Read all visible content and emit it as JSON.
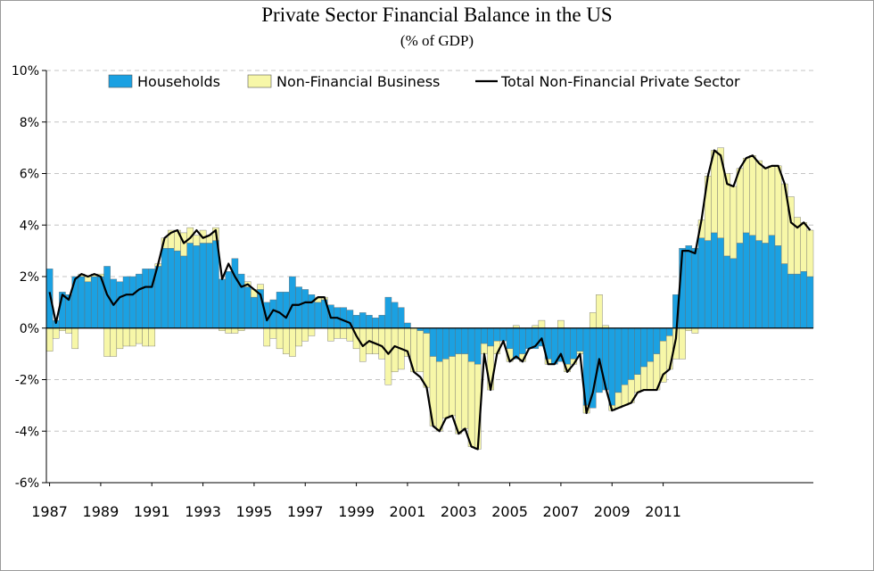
{
  "chart_data": {
    "type": "bar",
    "title": "Private Sector Financial Balance in the US",
    "subtitle": "(% of GDP)",
    "xlabel": "",
    "ylabel": "",
    "ylim": [
      -6,
      10
    ],
    "yticks": [
      "-6%",
      "-4%",
      "-2%",
      "0%",
      "2%",
      "4%",
      "6%",
      "8%",
      "10%"
    ],
    "xticks": [
      "1987",
      "1989",
      "1991",
      "1993",
      "1995",
      "1997",
      "1999",
      "2001",
      "2003",
      "2005",
      "2007",
      "2009",
      "2011"
    ],
    "x_start_year": 1987,
    "periods_per_year": 4,
    "grid": true,
    "stacked": true,
    "legend": "top",
    "series": [
      {
        "name": "Households",
        "kind": "bar",
        "color": "#1ba1e2",
        "values": [
          2.3,
          0.3,
          1.4,
          1.3,
          2.0,
          2.0,
          1.8,
          2.0,
          2.0,
          2.4,
          1.9,
          1.8,
          2.0,
          2.0,
          2.1,
          2.3,
          2.3,
          2.4,
          3.1,
          3.1,
          3.0,
          2.8,
          3.3,
          3.2,
          3.3,
          3.3,
          3.4,
          1.9,
          2.2,
          2.7,
          2.1,
          1.6,
          1.2,
          1.5,
          1.0,
          1.1,
          1.4,
          1.4,
          2.0,
          1.6,
          1.5,
          1.3,
          1.0,
          1.1,
          0.9,
          0.8,
          0.8,
          0.7,
          0.5,
          0.6,
          0.5,
          0.4,
          0.5,
          1.2,
          1.0,
          0.8,
          0.2,
          0.0,
          -0.1,
          -0.2,
          -1.1,
          -1.3,
          -1.2,
          -1.1,
          -1.0,
          -1.0,
          -1.3,
          -1.4,
          -0.6,
          -0.7,
          -0.5,
          -0.5,
          -0.8,
          -1.2,
          -1.0,
          -0.8,
          -0.8,
          -0.7,
          -1.2,
          -1.4,
          -1.3,
          -1.4,
          -1.2,
          -0.9,
          -3.0,
          -3.1,
          -2.5,
          -2.4,
          -3.0,
          -2.5,
          -2.2,
          -2.0,
          -1.8,
          -1.5,
          -1.3,
          -1.0,
          -0.5,
          -0.3,
          1.3,
          3.1,
          3.2,
          3.1,
          3.5,
          3.4,
          3.7,
          3.5,
          2.8,
          2.7,
          3.3,
          3.7,
          3.6,
          3.4,
          3.3,
          3.6,
          3.2,
          2.5,
          2.1,
          2.1,
          2.2,
          2.0
        ],
        "data_labels": false
      },
      {
        "name": "Non-Financial Business",
        "kind": "bar",
        "color": "#f7f7a8",
        "values": [
          -0.9,
          -0.4,
          -0.1,
          -0.2,
          -0.8,
          0.1,
          0.2,
          0.1,
          0.1,
          -1.1,
          -1.1,
          -0.8,
          -0.7,
          -0.7,
          -0.6,
          -0.7,
          -0.7,
          0.1,
          0.4,
          0.7,
          0.8,
          0.9,
          0.6,
          0.4,
          0.5,
          0.3,
          0.5,
          -0.1,
          -0.2,
          -0.2,
          -0.1,
          0.2,
          0.3,
          0.2,
          -0.7,
          -0.4,
          -0.8,
          -1.0,
          -1.1,
          -0.7,
          -0.5,
          -0.3,
          0.2,
          0.1,
          -0.5,
          -0.4,
          -0.4,
          -0.5,
          -0.8,
          -1.3,
          -1.0,
          -1.0,
          -1.2,
          -2.2,
          -1.7,
          -1.6,
          -1.1,
          -1.7,
          -1.6,
          -2.1,
          -2.7,
          -2.7,
          -2.3,
          -2.3,
          -3.1,
          -2.9,
          -3.3,
          -3.3,
          -0.4,
          -1.7,
          -0.5,
          0.0,
          -0.5,
          0.1,
          -0.3,
          0.0,
          0.1,
          0.3,
          -0.2,
          0.0,
          0.3,
          -0.3,
          -0.2,
          -0.1,
          -0.3,
          0.6,
          1.3,
          0.1,
          -0.2,
          -0.6,
          -0.8,
          -0.9,
          -0.7,
          -0.9,
          -1.1,
          -1.4,
          -1.6,
          -1.3,
          -1.2,
          -1.2,
          -0.1,
          -0.2,
          0.7,
          2.5,
          3.2,
          3.5,
          3.2,
          2.8,
          2.9,
          2.9,
          3.1,
          3.1,
          2.9,
          2.7,
          3.1,
          3.1,
          3.0,
          2.2,
          1.9,
          1.8
        ],
        "data_labels": false
      },
      {
        "name": "Total Non-Financial Private Sector",
        "kind": "line",
        "color": "#000000",
        "values": [
          1.4,
          0.2,
          1.3,
          1.1,
          1.9,
          2.1,
          2.0,
          2.1,
          2.0,
          1.3,
          0.9,
          1.2,
          1.3,
          1.3,
          1.5,
          1.6,
          1.6,
          2.5,
          3.5,
          3.7,
          3.8,
          3.3,
          3.5,
          3.8,
          3.5,
          3.6,
          3.8,
          1.9,
          2.5,
          2.0,
          1.6,
          1.7,
          1.5,
          1.3,
          0.3,
          0.7,
          0.6,
          0.4,
          0.9,
          0.9,
          1.0,
          1.0,
          1.2,
          1.2,
          0.4,
          0.4,
          0.3,
          0.2,
          -0.3,
          -0.7,
          -0.5,
          -0.6,
          -0.7,
          -1.0,
          -0.7,
          -0.8,
          -0.9,
          -1.7,
          -1.9,
          -2.3,
          -3.8,
          -4.0,
          -3.5,
          -3.4,
          -4.1,
          -3.9,
          -4.6,
          -4.7,
          -1.0,
          -2.4,
          -1.0,
          -0.5,
          -1.3,
          -1.1,
          -1.3,
          -0.8,
          -0.7,
          -0.4,
          -1.4,
          -1.4,
          -1.0,
          -1.7,
          -1.4,
          -1.0,
          -3.3,
          -2.5,
          -1.2,
          -2.3,
          -3.2,
          -3.1,
          -3.0,
          -2.9,
          -2.5,
          -2.4,
          -2.4,
          -2.4,
          -1.8,
          -1.6,
          -0.4,
          3.0,
          3.0,
          2.9,
          4.2,
          5.9,
          6.9,
          6.7,
          5.6,
          5.5,
          6.2,
          6.6,
          6.7,
          6.4,
          6.2,
          6.3,
          6.3,
          5.6,
          4.1,
          3.9,
          4.1,
          3.8
        ],
        "data_labels": false
      }
    ]
  }
}
